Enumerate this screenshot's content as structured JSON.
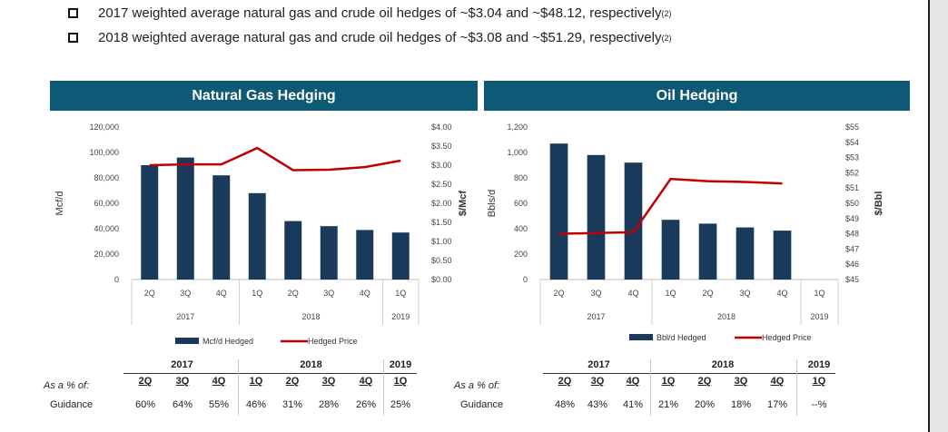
{
  "bullets": [
    {
      "text": "2017 weighted average natural gas and crude oil hedges of ~$3.04 and ~$48.12, respectively",
      "note": "(2)"
    },
    {
      "text": "2018 weighted average natural gas and crude oil hedges of ~$3.08 and ~$51.29, respectively",
      "note": "(2)"
    }
  ],
  "colors": {
    "header": "#0e5a76",
    "bar": "#1a3a5c",
    "line": "#c00000"
  },
  "chart_data": [
    {
      "type": "bar",
      "title": "Natural Gas Hedging",
      "categories": [
        "2Q",
        "3Q",
        "4Q",
        "1Q",
        "2Q",
        "3Q",
        "4Q",
        "1Q"
      ],
      "years": [
        {
          "label": "2017",
          "span": 3
        },
        {
          "label": "2018",
          "span": 4
        },
        {
          "label": "2019",
          "span": 1
        }
      ],
      "series": [
        {
          "name": "Mcf/d Hedged",
          "type": "bar",
          "axis": "left",
          "values": [
            90000,
            96000,
            82000,
            68000,
            46000,
            42000,
            39000,
            37000
          ]
        },
        {
          "name": "Hedged Price",
          "type": "line",
          "axis": "right",
          "values": [
            3.0,
            3.02,
            3.02,
            3.45,
            2.87,
            2.88,
            2.95,
            3.12
          ]
        }
      ],
      "ylabel": "Mcf/d",
      "ylim": [
        0,
        120000
      ],
      "yticks": [
        "0",
        "20,000",
        "40,000",
        "60,000",
        "80,000",
        "100,000",
        "120,000"
      ],
      "ylabel_right": "$/Mcf",
      "ylim_right": [
        0,
        4
      ],
      "yticks_right": [
        "$0.00",
        "$0.50",
        "$1.00",
        "$1.50",
        "$2.00",
        "$2.50",
        "$3.00",
        "$3.50",
        "$4.00"
      ],
      "legend": [
        "Mcf/d Hedged",
        "Hedged Price"
      ],
      "legend_position": "bottom"
    },
    {
      "type": "bar",
      "title": "Oil Hedging",
      "categories": [
        "2Q",
        "3Q",
        "4Q",
        "1Q",
        "2Q",
        "3Q",
        "4Q",
        "1Q"
      ],
      "years": [
        {
          "label": "2017",
          "span": 3
        },
        {
          "label": "2018",
          "span": 4
        },
        {
          "label": "2019",
          "span": 1
        }
      ],
      "series": [
        {
          "name": "Bbl/d Hedged",
          "type": "bar",
          "axis": "left",
          "values": [
            1070,
            980,
            920,
            470,
            440,
            410,
            385,
            null
          ]
        },
        {
          "name": "Hedged Price",
          "type": "line",
          "axis": "right",
          "values": [
            48.0,
            48.05,
            48.1,
            51.6,
            51.45,
            51.4,
            51.3,
            null
          ]
        }
      ],
      "ylabel": "Bbls/d",
      "ylim": [
        0,
        1200
      ],
      "yticks": [
        "0",
        "200",
        "400",
        "600",
        "800",
        "1,000",
        "1,200"
      ],
      "ylabel_right": "$/Bbl",
      "ylim_right": [
        45,
        55
      ],
      "yticks_right": [
        "$45",
        "$46",
        "$47",
        "$48",
        "$49",
        "$50",
        "$51",
        "$52",
        "$53",
        "$54",
        "$55"
      ],
      "legend": [
        "Bbl/d Hedged",
        "Hedged Price"
      ],
      "legend_position": "bottom"
    }
  ],
  "tables": [
    {
      "years": [
        "2017",
        "2018",
        "2019"
      ],
      "quarters": [
        "2Q",
        "3Q",
        "4Q",
        "1Q",
        "2Q",
        "3Q",
        "4Q",
        "1Q"
      ],
      "row_label_1": "As a % of:",
      "row_label_2": "Guidance",
      "values": [
        "60%",
        "64%",
        "55%",
        "46%",
        "31%",
        "28%",
        "26%",
        "25%"
      ]
    },
    {
      "years": [
        "2017",
        "2018",
        "2019"
      ],
      "quarters": [
        "2Q",
        "3Q",
        "4Q",
        "1Q",
        "2Q",
        "3Q",
        "4Q",
        "1Q"
      ],
      "row_label_1": "As a % of:",
      "row_label_2": "Guidance",
      "values": [
        "48%",
        "43%",
        "41%",
        "21%",
        "20%",
        "18%",
        "17%",
        "--%"
      ]
    }
  ]
}
